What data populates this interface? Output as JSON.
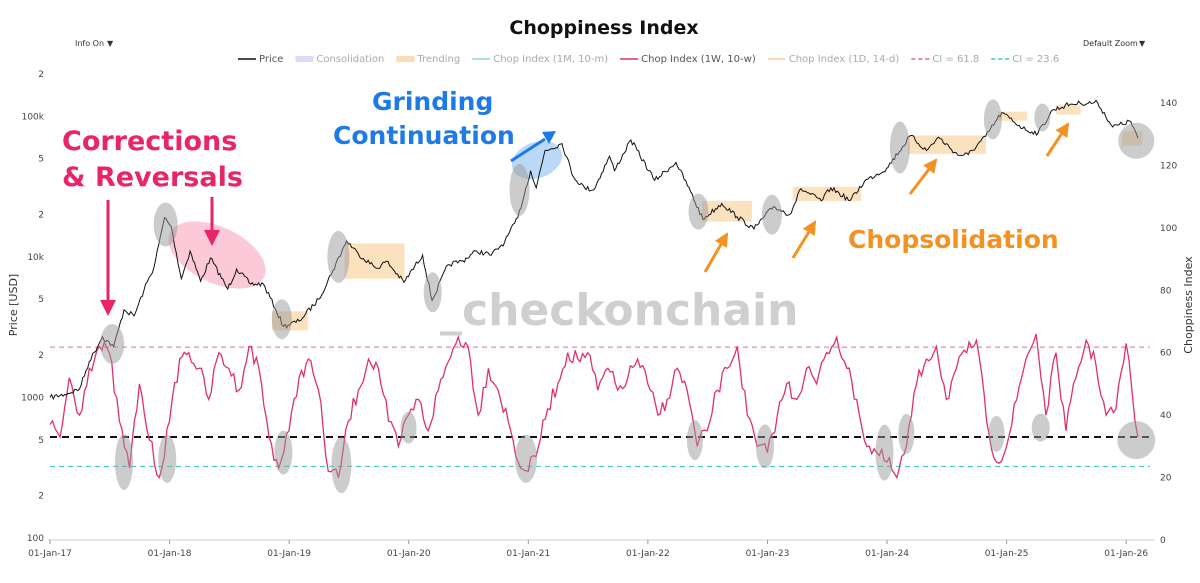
{
  "header": {
    "title": "Choppiness Index",
    "info_toggle": "Info On",
    "zoom_select": "Default Zoom",
    "dropdown_glyph": "▼"
  },
  "legend": [
    {
      "label": "Price",
      "color": "#111111",
      "style": "line",
      "dim": false
    },
    {
      "label": "Consolidation",
      "color": "#dcdcf8",
      "style": "box",
      "dim": true
    },
    {
      "label": "Trending",
      "color": "#fbdcb8",
      "style": "box",
      "dim": true
    },
    {
      "label": "Chop Index (1M, 10-m)",
      "color": "#8fd8d0",
      "style": "line",
      "dim": true
    },
    {
      "label": "Chop Index (1W, 10-w)",
      "color": "#e0306a",
      "style": "line",
      "dim": false
    },
    {
      "label": "Chop Index (1D, 14-d)",
      "color": "#f0d0a0",
      "style": "line",
      "dim": true
    },
    {
      "label": "CI = 61.8",
      "color": "#e06aa0",
      "style": "dash",
      "dim": true
    },
    {
      "label": "CI = 23.6",
      "color": "#30c8c0",
      "style": "dash",
      "dim": true
    }
  ],
  "watermark": "_checkonchain",
  "annotations": {
    "corrections_line1": "Corrections",
    "corrections_line2": "& Reversals",
    "grinding_line1": "Grinding",
    "grinding_line2": "Continuation",
    "chopsolidation": "Chopsolidation"
  },
  "colors": {
    "price": "#111111",
    "chop": "#e0306a",
    "trending_box": "#f9c98a",
    "circle_gray": "#9a9a9a",
    "corrections_pink": "#e8246a",
    "grinding_blue": "#1e7be6",
    "chop_orange": "#f39220",
    "ci_high": "#e06aa0",
    "ci_low": "#30c8c0",
    "black_dash": "#111111"
  },
  "chart_data": {
    "type": "line",
    "title": "Choppiness Index",
    "xlabel": "",
    "ylabel_left": "Price [USD]",
    "ylabel_right": "Choppiness Index",
    "x_ticks": [
      "01-Jan-17",
      "01-Jan-18",
      "01-Jan-19",
      "01-Jan-20",
      "01-Jan-21",
      "01-Jan-22",
      "01-Jan-23",
      "01-Jan-24",
      "01-Jan-25",
      "01-Jan-26"
    ],
    "y_left_scale": "log",
    "y_left_ticks": [
      "100",
      "2",
      "5",
      "1000",
      "2",
      "5",
      "10k",
      "2",
      "5",
      "100k",
      "2"
    ],
    "y_left_range": [
      100,
      200000
    ],
    "y_right_ticks": [
      "0",
      "20",
      "40",
      "60",
      "80",
      "100",
      "120",
      "140"
    ],
    "y_right_range": [
      0,
      150
    ],
    "reference_lines": [
      {
        "name": "CI = 61.8",
        "value": 61.8
      },
      {
        "name": "CI = 23.6",
        "value": 23.6
      },
      {
        "name": "black dashed",
        "value": 33
      }
    ],
    "series": [
      {
        "name": "Price",
        "axis": "left",
        "points": [
          [
            "2017-01-01",
            1000
          ],
          [
            "2017-02-15",
            1050
          ],
          [
            "2017-04-01",
            1150
          ],
          [
            "2017-05-01",
            1800
          ],
          [
            "2017-06-10",
            2700
          ],
          [
            "2017-07-15",
            2300
          ],
          [
            "2017-08-15",
            4200
          ],
          [
            "2017-09-15",
            3800
          ],
          [
            "2017-10-15",
            5800
          ],
          [
            "2017-11-15",
            8500
          ],
          [
            "2017-12-17",
            19000
          ],
          [
            "2018-01-06",
            16500
          ],
          [
            "2018-02-06",
            7000
          ],
          [
            "2018-03-05",
            11000
          ],
          [
            "2018-04-06",
            6700
          ],
          [
            "2018-05-06",
            9800
          ],
          [
            "2018-06-28",
            5900
          ],
          [
            "2018-07-25",
            8200
          ],
          [
            "2018-09-06",
            6400
          ],
          [
            "2018-10-15",
            6400
          ],
          [
            "2018-11-20",
            4300
          ],
          [
            "2018-12-15",
            3200
          ],
          [
            "2019-02-01",
            3500
          ],
          [
            "2019-04-02",
            5000
          ],
          [
            "2019-05-15",
            8000
          ],
          [
            "2019-06-26",
            13000
          ],
          [
            "2019-08-01",
            10500
          ],
          [
            "2019-09-25",
            8300
          ],
          [
            "2019-10-26",
            9300
          ],
          [
            "2019-12-18",
            6600
          ],
          [
            "2020-02-13",
            10300
          ],
          [
            "2020-03-13",
            4900
          ],
          [
            "2020-05-01",
            8800
          ],
          [
            "2020-06-15",
            9400
          ],
          [
            "2020-07-27",
            11000
          ],
          [
            "2020-09-10",
            10300
          ],
          [
            "2020-10-21",
            12800
          ],
          [
            "2020-11-30",
            19000
          ],
          [
            "2021-01-08",
            41000
          ],
          [
            "2021-01-25",
            31000
          ],
          [
            "2021-02-21",
            57000
          ],
          [
            "2021-04-14",
            64000
          ],
          [
            "2021-05-19",
            37000
          ],
          [
            "2021-06-22",
            31000
          ],
          [
            "2021-07-20",
            30000
          ],
          [
            "2021-09-06",
            52000
          ],
          [
            "2021-09-21",
            41000
          ],
          [
            "2021-11-10",
            68000
          ],
          [
            "2022-01-22",
            35000
          ],
          [
            "2022-03-28",
            47000
          ],
          [
            "2022-05-12",
            29000
          ],
          [
            "2022-06-18",
            18500
          ],
          [
            "2022-08-15",
            24000
          ],
          [
            "2022-10-01",
            19300
          ],
          [
            "2022-11-21",
            15800
          ],
          [
            "2023-01-20",
            22800
          ],
          [
            "2023-03-10",
            20000
          ],
          [
            "2023-04-14",
            30500
          ],
          [
            "2023-06-15",
            25000
          ],
          [
            "2023-07-14",
            31000
          ],
          [
            "2023-09-11",
            25100
          ],
          [
            "2023-10-25",
            34500
          ],
          [
            "2023-12-31",
            42500
          ],
          [
            "2024-03-14",
            73000
          ],
          [
            "2024-05-01",
            57000
          ],
          [
            "2024-06-07",
            71000
          ],
          [
            "2024-08-05",
            53000
          ],
          [
            "2024-09-06",
            53500
          ],
          [
            "2024-10-29",
            72000
          ],
          [
            "2024-12-17",
            106000
          ],
          [
            "2025-02-28",
            80000
          ],
          [
            "2025-04-07",
            76000
          ],
          [
            "2025-05-22",
            111000
          ],
          [
            "2025-07-14",
            122000
          ],
          [
            "2025-08-14",
            124000
          ],
          [
            "2025-10-06",
            125000
          ],
          [
            "2025-11-21",
            84000
          ],
          [
            "2026-01-15",
            92000
          ],
          [
            "2026-02-06",
            70000
          ]
        ]
      },
      {
        "name": "Chop Index (1W, 10-w)",
        "axis": "right",
        "points": [
          [
            "2017-01-01",
            37
          ],
          [
            "2017-02-01",
            33
          ],
          [
            "2017-03-01",
            52
          ],
          [
            "2017-04-01",
            40
          ],
          [
            "2017-05-01",
            55
          ],
          [
            "2017-06-01",
            62
          ],
          [
            "2017-07-01",
            60
          ],
          [
            "2017-08-01",
            38
          ],
          [
            "2017-09-01",
            23
          ],
          [
            "2017-10-01",
            50
          ],
          [
            "2017-11-01",
            32
          ],
          [
            "2017-12-01",
            20
          ],
          [
            "2018-01-01",
            38
          ],
          [
            "2018-02-01",
            58
          ],
          [
            "2018-03-01",
            60
          ],
          [
            "2018-04-01",
            55
          ],
          [
            "2018-05-01",
            45
          ],
          [
            "2018-06-01",
            60
          ],
          [
            "2018-07-01",
            55
          ],
          [
            "2018-08-01",
            48
          ],
          [
            "2018-09-01",
            62
          ],
          [
            "2018-10-01",
            55
          ],
          [
            "2018-11-01",
            33
          ],
          [
            "2018-12-01",
            23
          ],
          [
            "2019-01-01",
            35
          ],
          [
            "2019-02-01",
            52
          ],
          [
            "2019-03-01",
            58
          ],
          [
            "2019-04-01",
            48
          ],
          [
            "2019-05-01",
            22
          ],
          [
            "2019-06-01",
            20
          ],
          [
            "2019-07-01",
            38
          ],
          [
            "2019-08-01",
            48
          ],
          [
            "2019-09-01",
            58
          ],
          [
            "2019-10-01",
            55
          ],
          [
            "2019-11-01",
            38
          ],
          [
            "2019-12-01",
            30
          ],
          [
            "2020-01-01",
            40
          ],
          [
            "2020-02-01",
            45
          ],
          [
            "2020-03-01",
            35
          ],
          [
            "2020-04-01",
            48
          ],
          [
            "2020-05-01",
            57
          ],
          [
            "2020-06-01",
            65
          ],
          [
            "2020-07-01",
            62
          ],
          [
            "2020-08-01",
            40
          ],
          [
            "2020-09-01",
            55
          ],
          [
            "2020-10-01",
            48
          ],
          [
            "2020-11-01",
            38
          ],
          [
            "2020-12-01",
            25
          ],
          [
            "2021-01-01",
            22
          ],
          [
            "2021-02-01",
            30
          ],
          [
            "2021-03-01",
            42
          ],
          [
            "2021-04-01",
            50
          ],
          [
            "2021-05-01",
            60
          ],
          [
            "2021-06-01",
            58
          ],
          [
            "2021-07-01",
            60
          ],
          [
            "2021-08-01",
            48
          ],
          [
            "2021-09-01",
            55
          ],
          [
            "2021-10-01",
            48
          ],
          [
            "2021-11-01",
            52
          ],
          [
            "2021-12-01",
            58
          ],
          [
            "2022-01-01",
            50
          ],
          [
            "2022-02-01",
            40
          ],
          [
            "2022-03-01",
            45
          ],
          [
            "2022-04-01",
            55
          ],
          [
            "2022-05-01",
            48
          ],
          [
            "2022-06-01",
            30
          ],
          [
            "2022-07-01",
            35
          ],
          [
            "2022-08-01",
            48
          ],
          [
            "2022-09-01",
            55
          ],
          [
            "2022-10-01",
            62
          ],
          [
            "2022-11-01",
            40
          ],
          [
            "2022-12-01",
            30
          ],
          [
            "2023-01-01",
            28
          ],
          [
            "2023-02-01",
            40
          ],
          [
            "2023-03-01",
            50
          ],
          [
            "2023-04-01",
            45
          ],
          [
            "2023-05-01",
            55
          ],
          [
            "2023-06-01",
            50
          ],
          [
            "2023-07-01",
            60
          ],
          [
            "2023-08-01",
            65
          ],
          [
            "2023-09-01",
            55
          ],
          [
            "2023-10-01",
            45
          ],
          [
            "2023-11-01",
            30
          ],
          [
            "2023-12-01",
            28
          ],
          [
            "2024-01-01",
            25
          ],
          [
            "2024-02-01",
            20
          ],
          [
            "2024-03-01",
            30
          ],
          [
            "2024-04-01",
            50
          ],
          [
            "2024-05-01",
            58
          ],
          [
            "2024-06-01",
            62
          ],
          [
            "2024-07-01",
            45
          ],
          [
            "2024-08-01",
            55
          ],
          [
            "2024-09-01",
            60
          ],
          [
            "2024-10-01",
            64
          ],
          [
            "2024-11-01",
            38
          ],
          [
            "2024-12-01",
            25
          ],
          [
            "2025-01-01",
            30
          ],
          [
            "2025-02-01",
            45
          ],
          [
            "2025-03-01",
            58
          ],
          [
            "2025-04-01",
            66
          ],
          [
            "2025-05-01",
            40
          ],
          [
            "2025-06-01",
            60
          ],
          [
            "2025-07-01",
            35
          ],
          [
            "2025-08-01",
            52
          ],
          [
            "2025-09-01",
            64
          ],
          [
            "2025-10-01",
            56
          ],
          [
            "2025-11-01",
            40
          ],
          [
            "2025-12-01",
            42
          ],
          [
            "2026-01-01",
            63
          ],
          [
            "2026-02-06",
            33
          ]
        ]
      }
    ],
    "trending_boxes": [
      {
        "from": "2018-11-10",
        "to": "2019-03-01",
        "price_low": 3000,
        "price_high": 4100
      },
      {
        "from": "2019-06-20",
        "to": "2019-12-20",
        "price_low": 7000,
        "price_high": 12500
      },
      {
        "from": "2022-06-15",
        "to": "2022-11-15",
        "price_low": 17800,
        "price_high": 25000
      },
      {
        "from": "2023-03-20",
        "to": "2023-10-15",
        "price_low": 25000,
        "price_high": 31500
      },
      {
        "from": "2024-03-05",
        "to": "2024-10-30",
        "price_low": 54000,
        "price_high": 73000
      },
      {
        "from": "2024-12-05",
        "to": "2025-03-05",
        "price_low": 93000,
        "price_high": 108000
      },
      {
        "from": "2025-06-01",
        "to": "2025-08-15",
        "price_low": 103000,
        "price_high": 120000
      },
      {
        "from": "2025-12-20",
        "to": "2026-02-20",
        "price_low": 62000,
        "price_high": 78000
      }
    ]
  }
}
